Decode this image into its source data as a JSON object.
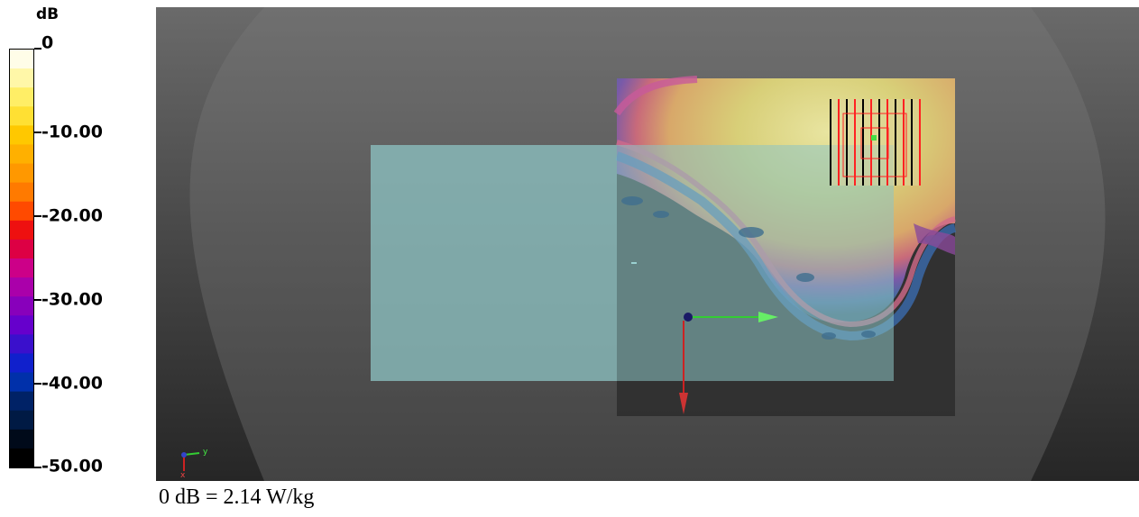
{
  "legend": {
    "unit": "dB",
    "labels": [
      "0",
      "-10.00",
      "-20.00",
      "-30.00",
      "-40.00",
      "-50.00"
    ],
    "colors": [
      "#fffde8",
      "#fff7a8",
      "#ffee66",
      "#ffe033",
      "#ffc800",
      "#ffb000",
      "#ff9800",
      "#ff7a00",
      "#ff4a00",
      "#ee1010",
      "#dd0044",
      "#cc0088",
      "#aa00aa",
      "#8800bb",
      "#6600cc",
      "#3a10cc",
      "#1020cc",
      "#0030aa",
      "#002266",
      "#001a44",
      "#000a1a",
      "#000000"
    ]
  },
  "view": {
    "axis_label_y": "y",
    "axis_label_x": "x",
    "colors": {
      "phantom": "#7a7a7a",
      "phone_body": "#8dc4c4",
      "scan_area": "#2f2f2f",
      "hotspot": "#d8d07a",
      "axis_green": "#33cc33",
      "axis_red": "#cc2222",
      "zoom_scan": "#ff2222"
    }
  },
  "reference": {
    "text": "0 dB = 2.14 W/kg"
  }
}
